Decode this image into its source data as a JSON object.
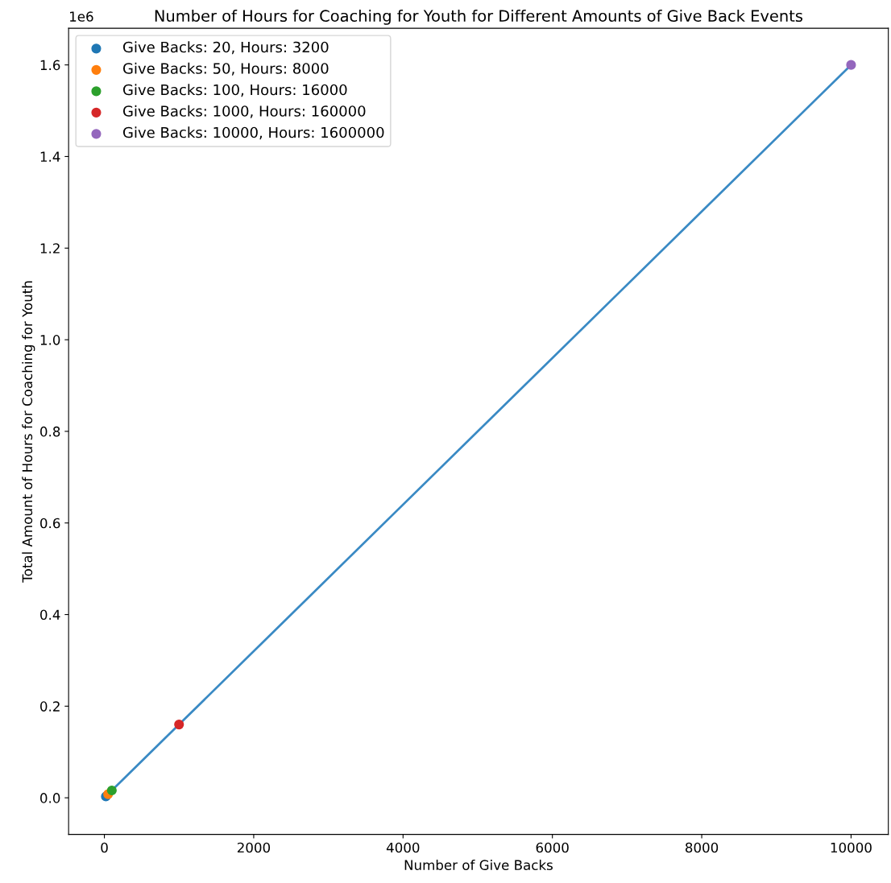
{
  "chart_data": {
    "type": "scatter",
    "title": "Number of Hours for Coaching for Youth for Different Amounts of Give Back Events",
    "xlabel": "Number of Give Backs",
    "ylabel": "Total Amount of Hours for Coaching for Youth",
    "annotations": [
      "1e6"
    ],
    "series": [
      {
        "type": "line",
        "color": "#3a8ac4",
        "x": [
          20,
          50,
          100,
          1000,
          10000
        ],
        "values": [
          0.003,
          0.008,
          0.016,
          0.16,
          1.6
        ]
      },
      {
        "name": "Give Backs: 20, Hours: 3200",
        "marker": "circle",
        "color": "#1f77b4",
        "x": [
          20
        ],
        "values": [
          0.003
        ]
      },
      {
        "name": "Give Backs: 50, Hours: 8000",
        "marker": "circle",
        "color": "#ff7f0e",
        "x": [
          50
        ],
        "values": [
          0.008
        ]
      },
      {
        "name": "Give Backs: 100, Hours: 16000",
        "marker": "circle",
        "color": "#2ca02c",
        "x": [
          100
        ],
        "values": [
          0.016
        ]
      },
      {
        "name": "Give Backs: 1000, Hours: 160000",
        "marker": "circle",
        "color": "#d62728",
        "x": [
          1000
        ],
        "values": [
          0.16
        ]
      },
      {
        "name": "Give Backs: 10000, Hours: 1600000",
        "marker": "circle",
        "color": "#9467bd",
        "x": [
          10000
        ],
        "values": [
          1.6
        ]
      }
    ],
    "xlim": [
      -479,
      10499
    ],
    "ylim": [
      -0.08,
      1.68
    ],
    "xticks": [
      0,
      2000,
      4000,
      6000,
      8000,
      10000
    ],
    "yticks": [
      {
        "value": 0,
        "label": "0.0"
      },
      0.2,
      0.4,
      0.6,
      0.8,
      {
        "value": 1,
        "label": "1.0"
      },
      1.2,
      1.4,
      1.6
    ],
    "legend": "top left",
    "grid": false
  }
}
